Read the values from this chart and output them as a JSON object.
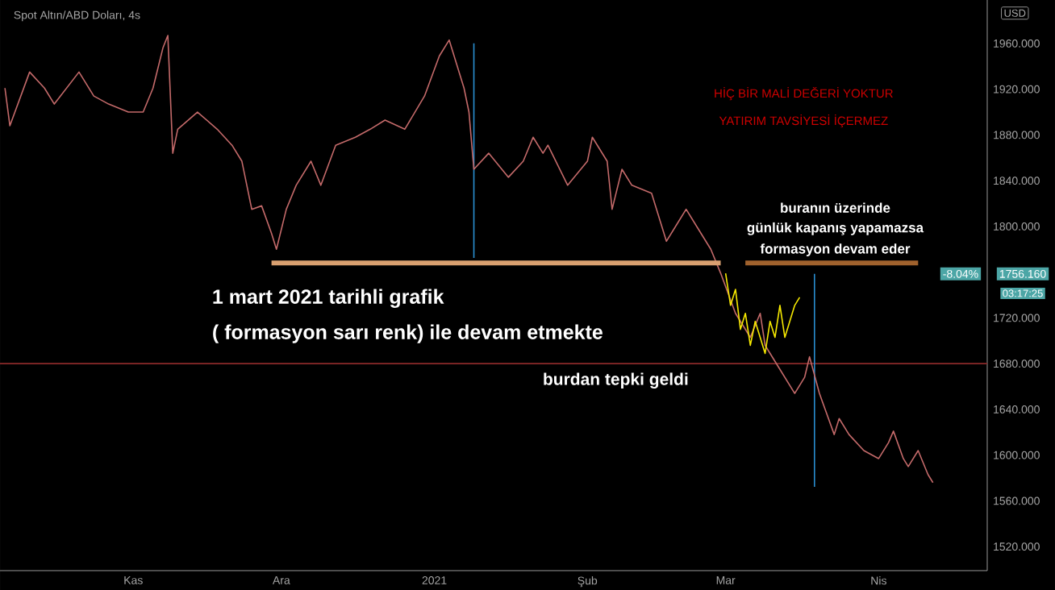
{
  "chart_data": {
    "type": "line",
    "title": "Spot Altın/ABD Doları, 4s",
    "series": [
      {
        "color": "#c46a6a",
        "x": [
          "2020-10-06",
          "2020-10-07",
          "2020-10-11",
          "2020-10-14",
          "2020-10-16",
          "2020-10-21",
          "2020-10-24",
          "2020-10-27",
          "2020-10-31",
          "2020-11-03",
          "2020-11-05",
          "2020-11-07",
          "2020-11-08",
          "2020-11-09",
          "2020-11-10",
          "2020-11-14",
          "2020-11-18",
          "2020-11-21",
          "2020-11-23",
          "2020-11-25",
          "2020-11-27",
          "2020-11-29",
          "2020-11-30",
          "2020-12-02",
          "2020-12-04",
          "2020-12-07",
          "2020-12-09",
          "2020-12-12",
          "2020-12-16",
          "2020-12-19",
          "2020-12-22",
          "2020-12-26",
          "2020-12-30",
          "2021-01-02",
          "2021-01-04",
          "2021-01-07",
          "2021-01-08",
          "2021-01-09",
          "2021-01-12",
          "2021-01-16",
          "2021-01-19",
          "2021-01-21",
          "2021-01-23",
          "2021-01-24",
          "2021-01-28",
          "2021-02-01",
          "2021-02-02",
          "2021-02-05",
          "2021-02-06",
          "2021-02-08",
          "2021-02-10",
          "2021-02-14",
          "2021-02-17",
          "2021-02-19",
          "2021-02-21",
          "2021-02-23",
          "2021-02-26",
          "2021-02-28",
          "2021-03-03",
          "2021-03-06",
          "2021-03-08",
          "2021-03-09",
          "2021-03-12",
          "2021-03-15",
          "2021-03-17",
          "2021-03-18",
          "2021-03-20",
          "2021-03-23",
          "2021-03-24",
          "2021-03-26",
          "2021-03-29",
          "2021-04-01",
          "2021-04-03",
          "2021-04-04",
          "2021-04-06",
          "2021-04-07",
          "2021-04-09",
          "2021-04-11",
          "2021-04-12"
        ],
        "values": [
          1921,
          1888,
          1935,
          1921,
          1907,
          1935,
          1914,
          1907,
          1900,
          1900,
          1921,
          1956,
          1967,
          1864,
          1885,
          1900,
          1885,
          1871,
          1857,
          1815,
          1818,
          1794,
          1780,
          1815,
          1836,
          1857,
          1836,
          1871,
          1878,
          1885,
          1893,
          1885,
          1914,
          1949,
          1963,
          1921,
          1900,
          1850,
          1864,
          1843,
          1857,
          1878,
          1864,
          1871,
          1836,
          1857,
          1878,
          1857,
          1815,
          1850,
          1836,
          1829,
          1787,
          1801,
          1815,
          1801,
          1780,
          1759,
          1724,
          1703,
          1724,
          1696,
          1675,
          1654,
          1668,
          1686,
          1654,
          1618,
          1632,
          1618,
          1604,
          1597,
          1611,
          1621,
          1597,
          1590,
          1604,
          1583,
          1576
        ]
      },
      {
        "color": "#f5e800",
        "x": [
          "2021-03-01",
          "2021-03-02",
          "2021-03-03",
          "2021-03-04",
          "2021-03-05",
          "2021-03-06",
          "2021-03-07",
          "2021-03-09",
          "2021-03-10",
          "2021-03-11",
          "2021-03-12",
          "2021-03-13",
          "2021-03-15",
          "2021-03-16"
        ],
        "values": [
          1759,
          1731,
          1745,
          1710,
          1724,
          1696,
          1717,
          1689,
          1717,
          1703,
          1731,
          1703,
          1731,
          1738
        ]
      },
      {
        "color": "#d9a070",
        "x": [
          "2020-11-29",
          "2021-02-28"
        ],
        "values": [
          1768,
          1768
        ]
      },
      {
        "color": "#a0622d",
        "x": [
          "2021-03-05",
          "2021-04-09"
        ],
        "values": [
          1768,
          1768
        ]
      }
    ],
    "xlim": [
      "2020-10-05",
      "2021-04-23"
    ],
    "xticks": [
      {
        "value": "2020-11-01",
        "label": "Kas"
      },
      {
        "value": "2020-12-01",
        "label": "Ara"
      },
      {
        "value": "2021-01-01",
        "label": "2021"
      },
      {
        "value": "2021-02-01",
        "label": "Şub"
      },
      {
        "value": "2021-03-01",
        "label": "Mar"
      },
      {
        "value": "2021-04-01",
        "label": "Nis"
      }
    ],
    "ylim": [
      1499,
      1998
    ],
    "yticks": [
      {
        "value": 1520,
        "label": "1520.000"
      },
      {
        "value": 1560,
        "label": "1560.000"
      },
      {
        "value": 1600,
        "label": "1600.000"
      },
      {
        "value": 1640,
        "label": "1640.000"
      },
      {
        "value": 1680,
        "label": "1680.000"
      },
      {
        "value": 1720,
        "label": "1720.000"
      },
      {
        "value": 1800,
        "label": "1800.000"
      },
      {
        "value": 1840,
        "label": "1840.000"
      },
      {
        "value": 1880,
        "label": "1880.000"
      },
      {
        "value": 1920,
        "label": "1920.000"
      },
      {
        "value": 1960,
        "label": "1960.000"
      }
    ],
    "ylabel": "USD",
    "ref_lines": [
      {
        "axis": "y",
        "value": 1680,
        "color": "#8b2a2a"
      },
      {
        "axis": "x",
        "value": "2021-01-09",
        "color": "#2a8fd0"
      },
      {
        "axis": "x",
        "value": "2021-03-19",
        "color": "#2a8fd0"
      }
    ],
    "annotations": [
      "1 mart 2021 tarihli  grafik",
      "( formasyon sarı renk) ile devam etmekte",
      "burdan tepki geldi",
      "buranın üzerinde",
      "günlük kapanış yapamazsa",
      "formasyon devam eder",
      "HİÇ BİR MALİ DEĞERİ YOKTUR",
      "YATIRIM TAVSİYESİ İÇERMEZ",
      "-8.04%",
      "1756.160",
      "03:17:25"
    ]
  }
}
